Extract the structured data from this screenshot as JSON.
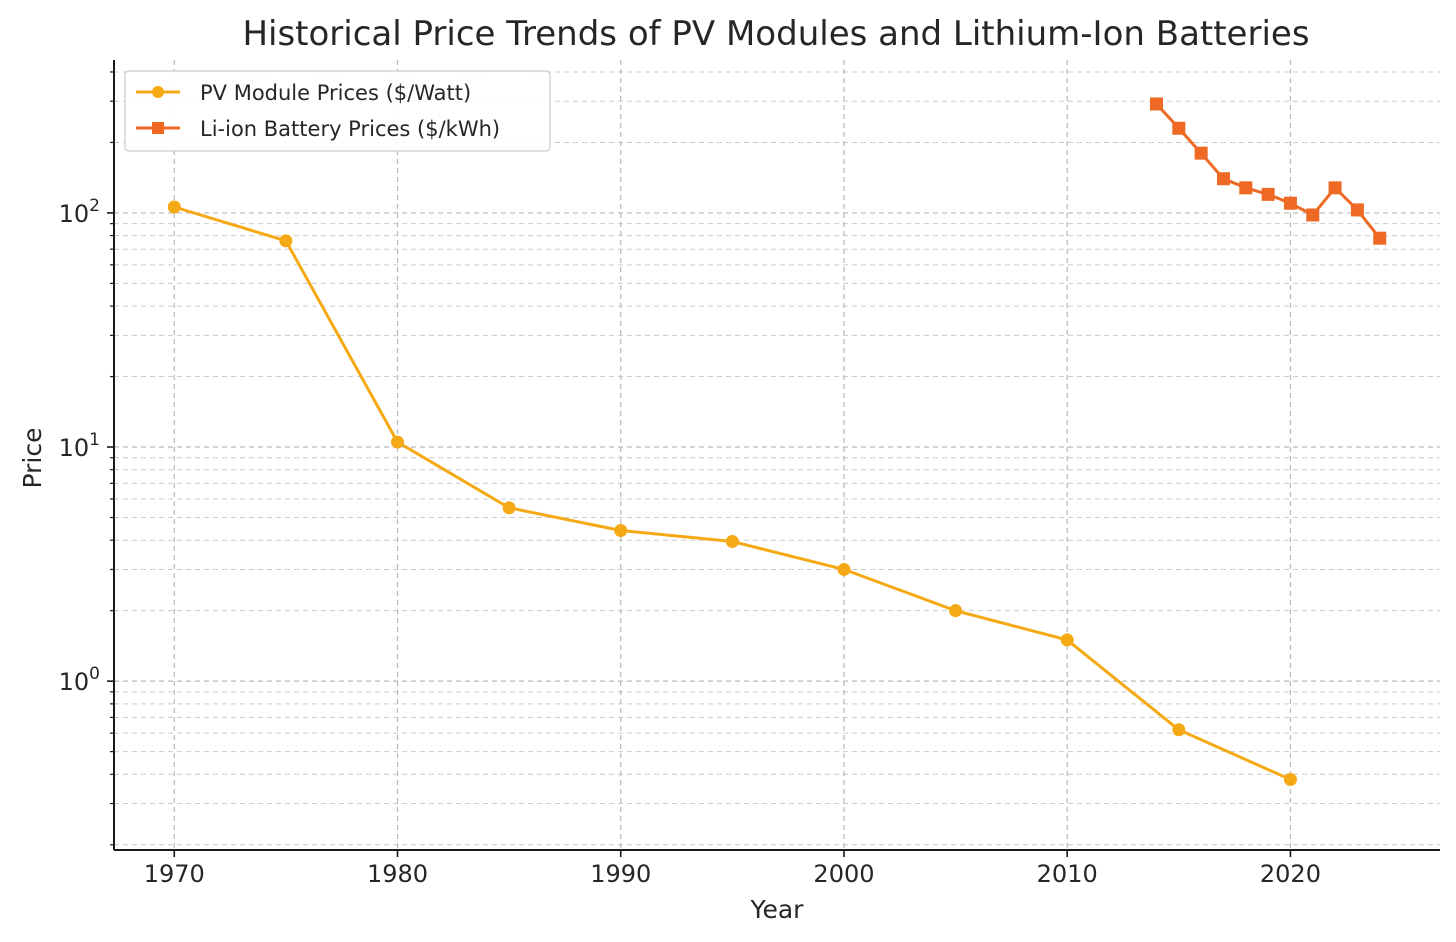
{
  "chart_data": {
    "type": "line",
    "title": "Historical Price Trends of PV Modules and Lithium-Ion Batteries",
    "xlabel": "Year",
    "ylabel": "Price",
    "yscale": "log",
    "xlim": [
      1967.3,
      2026.7
    ],
    "ylim": [
      0.19,
      450
    ],
    "grid": true,
    "legend_position": "top-left",
    "x_ticks": [
      1970,
      1980,
      1990,
      2000,
      2010,
      2020
    ],
    "y_ticks": [
      {
        "value": 1,
        "base": "10",
        "exp": "0"
      },
      {
        "value": 10,
        "base": "10",
        "exp": "1"
      },
      {
        "value": 100,
        "base": "10",
        "exp": "2"
      }
    ],
    "series": [
      {
        "name": "PV Module Prices ($/Watt)",
        "color": "#F5A914",
        "marker": "circle",
        "x": [
          1970,
          1975,
          1980,
          1985,
          1990,
          1995,
          2000,
          2005,
          2010,
          2015,
          2020
        ],
        "values": [
          106,
          76,
          10.5,
          5.5,
          4.4,
          3.95,
          3.0,
          2.0,
          1.5,
          0.62,
          0.38
        ]
      },
      {
        "name": "Li-ion Battery Prices ($/kWh)",
        "color": "#EE6A24",
        "marker": "square",
        "x": [
          2014,
          2015,
          2016,
          2017,
          2018,
          2019,
          2020,
          2021,
          2022,
          2023,
          2024
        ],
        "values": [
          292,
          230,
          180,
          140,
          128,
          120,
          110,
          98,
          128,
          103,
          78
        ]
      }
    ]
  }
}
